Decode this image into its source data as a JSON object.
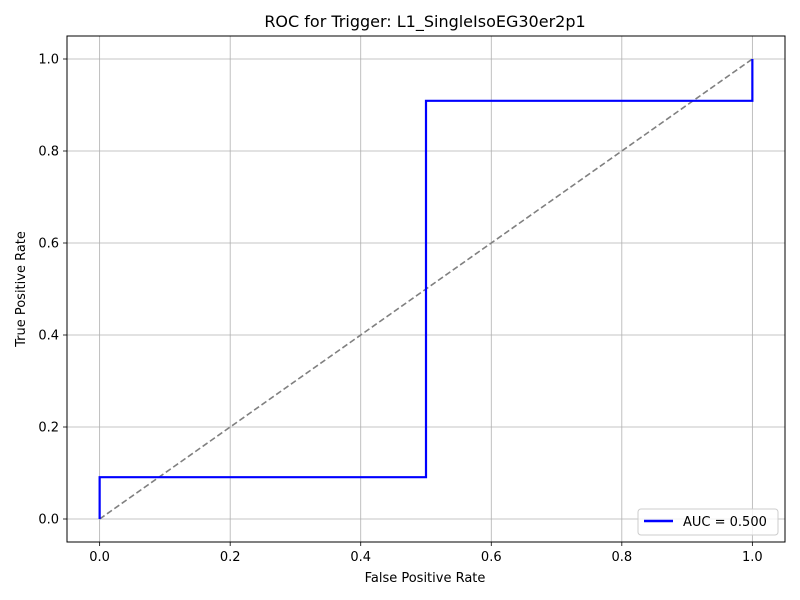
{
  "chart_data": {
    "type": "line",
    "title": "ROC for Trigger: L1_SingleIsoEG30er2p1",
    "xlabel": "False Positive Rate",
    "ylabel": "True Positive Rate",
    "xlim": [
      -0.05,
      1.05
    ],
    "ylim": [
      -0.05,
      1.05
    ],
    "xticks": [
      0.0,
      0.2,
      0.4,
      0.6,
      0.8,
      1.0
    ],
    "yticks": [
      0.0,
      0.2,
      0.4,
      0.6,
      0.8,
      1.0
    ],
    "xtick_labels": [
      "0.0",
      "0.2",
      "0.4",
      "0.6",
      "0.8",
      "1.0"
    ],
    "ytick_labels": [
      "0.0",
      "0.2",
      "0.4",
      "0.6",
      "0.8",
      "1.0"
    ],
    "grid": true,
    "legend_position": "lower-right",
    "series": [
      {
        "name": "AUC = 0.500",
        "color": "#0000ff",
        "style": "solid",
        "x": [
          0.0,
          0.0,
          0.5,
          0.5,
          1.0,
          1.0
        ],
        "y": [
          0.0,
          0.0909,
          0.0909,
          0.9091,
          0.9091,
          1.0
        ]
      },
      {
        "color": "#808080",
        "style": "dashed",
        "x": [
          0.0,
          1.0
        ],
        "y": [
          0.0,
          1.0
        ]
      }
    ]
  }
}
